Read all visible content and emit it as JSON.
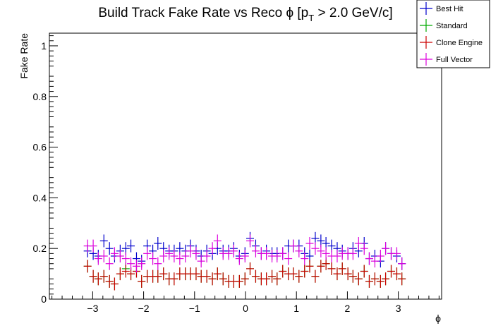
{
  "chart_data": {
    "type": "scatter",
    "title_main": "Build Track Fake Rate vs Reco ϕ [p",
    "title_sub": "T",
    "title_rest": " > 2.0 GeV/c]",
    "xlabel": "ϕ",
    "ylabel": "Fake Rate",
    "xlim": [
      -3.85,
      3.85
    ],
    "ylim": [
      0,
      1.05
    ],
    "x_ticks": [
      -3,
      -2,
      -1,
      0,
      1,
      2,
      3
    ],
    "x_tick_labels": [
      "−3",
      "−2",
      "−1",
      "0",
      "1",
      "2",
      "3"
    ],
    "y_ticks": [
      0,
      0.2,
      0.4,
      0.6,
      0.8,
      1
    ],
    "y_tick_labels": [
      "0",
      "0.2",
      "0.4",
      "0.6",
      "0.8",
      "1"
    ],
    "legend_position": "top-right",
    "x": [
      -3.1,
      -2.99,
      -2.89,
      -2.78,
      -2.67,
      -2.57,
      -2.46,
      -2.35,
      -2.25,
      -2.14,
      -2.04,
      -1.93,
      -1.82,
      -1.72,
      -1.61,
      -1.5,
      -1.4,
      -1.29,
      -1.18,
      -1.08,
      -0.97,
      -0.87,
      -0.76,
      -0.65,
      -0.55,
      -0.44,
      -0.33,
      -0.23,
      -0.12,
      -0.01,
      0.09,
      0.2,
      0.31,
      0.41,
      0.52,
      0.62,
      0.73,
      0.84,
      0.94,
      1.05,
      1.16,
      1.26,
      1.37,
      1.48,
      1.58,
      1.69,
      1.8,
      1.9,
      2.01,
      2.11,
      2.22,
      2.33,
      2.43,
      2.54,
      2.65,
      2.75,
      2.86,
      2.97,
      3.07
    ],
    "series": [
      {
        "name": "Best Hit",
        "color": "#0000cc",
        "values": [
          0.19,
          0.18,
          0.17,
          0.23,
          0.2,
          0.17,
          0.19,
          0.2,
          0.21,
          0.16,
          0.15,
          0.21,
          0.19,
          0.22,
          0.2,
          0.19,
          0.19,
          0.2,
          0.19,
          0.21,
          0.19,
          0.17,
          0.19,
          0.18,
          0.2,
          0.19,
          0.19,
          0.2,
          0.17,
          0.18,
          0.24,
          0.21,
          0.18,
          0.19,
          0.18,
          0.18,
          0.18,
          0.21,
          0.21,
          0.21,
          0.18,
          0.17,
          0.24,
          0.23,
          0.22,
          0.21,
          0.2,
          0.19,
          0.18,
          0.2,
          0.19,
          0.22,
          0.16,
          0.17,
          0.15,
          0.2,
          0.18,
          0.17,
          0.14
        ]
      },
      {
        "name": "Standard",
        "color": "#00aa00",
        "values": [
          0.13,
          0.09,
          0.08,
          0.09,
          0.07,
          0.06,
          0.1,
          0.12,
          0.1,
          0.11,
          0.07,
          0.09,
          0.09,
          0.09,
          0.1,
          0.08,
          0.08,
          0.1,
          0.1,
          0.1,
          0.1,
          0.09,
          0.09,
          0.08,
          0.1,
          0.08,
          0.07,
          0.07,
          0.07,
          0.08,
          0.12,
          0.09,
          0.08,
          0.08,
          0.09,
          0.08,
          0.11,
          0.1,
          0.1,
          0.09,
          0.11,
          0.13,
          0.09,
          0.13,
          0.14,
          0.12,
          0.1,
          0.12,
          0.1,
          0.09,
          0.08,
          0.11,
          0.07,
          0.08,
          0.07,
          0.08,
          0.11,
          0.1,
          0.08
        ]
      },
      {
        "name": "Clone Engine",
        "color": "#cc0000",
        "values": [
          0.13,
          0.09,
          0.08,
          0.09,
          0.07,
          0.06,
          0.1,
          0.11,
          0.1,
          0.11,
          0.07,
          0.09,
          0.09,
          0.09,
          0.1,
          0.08,
          0.08,
          0.1,
          0.1,
          0.1,
          0.1,
          0.09,
          0.09,
          0.08,
          0.1,
          0.08,
          0.07,
          0.07,
          0.07,
          0.08,
          0.12,
          0.09,
          0.08,
          0.08,
          0.09,
          0.08,
          0.11,
          0.1,
          0.1,
          0.09,
          0.11,
          0.13,
          0.09,
          0.13,
          0.14,
          0.12,
          0.1,
          0.12,
          0.1,
          0.09,
          0.08,
          0.11,
          0.07,
          0.08,
          0.07,
          0.08,
          0.11,
          0.1,
          0.08
        ]
      },
      {
        "name": "Full Vector",
        "color": "#dd00dd",
        "values": [
          0.21,
          0.21,
          0.16,
          0.17,
          0.14,
          0.18,
          0.17,
          0.16,
          0.14,
          0.13,
          0.14,
          0.18,
          0.16,
          0.14,
          0.17,
          0.18,
          0.17,
          0.16,
          0.17,
          0.19,
          0.18,
          0.15,
          0.17,
          0.2,
          0.23,
          0.18,
          0.18,
          0.19,
          0.16,
          0.17,
          0.23,
          0.19,
          0.18,
          0.18,
          0.17,
          0.17,
          0.18,
          0.16,
          0.21,
          0.19,
          0.16,
          0.22,
          0.2,
          0.19,
          0.18,
          0.17,
          0.17,
          0.18,
          0.18,
          0.18,
          0.22,
          0.2,
          0.16,
          0.15,
          0.17,
          0.2,
          0.18,
          0.18,
          0.14
        ]
      }
    ]
  }
}
